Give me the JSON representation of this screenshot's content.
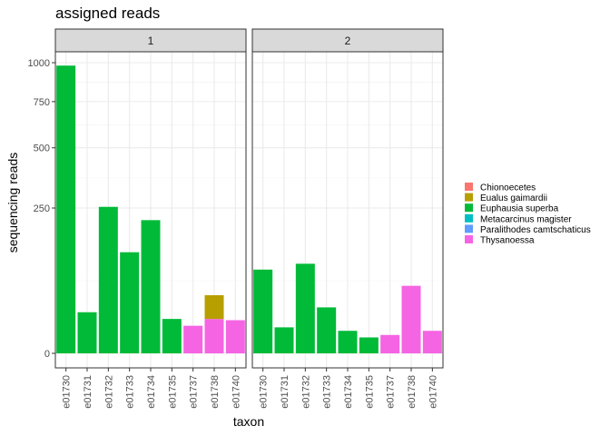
{
  "chart_data": {
    "type": "bar",
    "stacked": true,
    "title": "assigned reads",
    "xlabel": "taxon",
    "ylabel": "sequencing reads",
    "y_scale": "sqrt",
    "ylim": [
      0,
      1100
    ],
    "yticks": [
      0,
      250,
      500,
      750,
      1000
    ],
    "categories": [
      "e01730",
      "e01731",
      "e01732",
      "e01733",
      "e01734",
      "e01735",
      "e01737",
      "e01738",
      "e01740"
    ],
    "legend_position": "right",
    "legend": [
      {
        "name": "Chionoecetes",
        "color": "#F8766D"
      },
      {
        "name": "Eualus gaimardii",
        "color": "#B79F00"
      },
      {
        "name": "Euphausia superba",
        "color": "#00BA38"
      },
      {
        "name": "Metacarcinus magister",
        "color": "#00BFC4"
      },
      {
        "name": "Paralithodes camtschaticus",
        "color": "#619CFF"
      },
      {
        "name": "Thysanoessa",
        "color": "#F564E3"
      }
    ],
    "panels": [
      {
        "label": "1",
        "bars": [
          {
            "category": "e01730",
            "segments": [
              {
                "taxon": "Euphausia superba",
                "value": 980
              }
            ]
          },
          {
            "category": "e01731",
            "segments": [
              {
                "taxon": "Euphausia superba",
                "value": 20
              }
            ]
          },
          {
            "category": "e01732",
            "segments": [
              {
                "taxon": "Euphausia superba",
                "value": 254
              }
            ]
          },
          {
            "category": "e01733",
            "segments": [
              {
                "taxon": "Euphausia superba",
                "value": 121
              }
            ]
          },
          {
            "category": "e01734",
            "segments": [
              {
                "taxon": "Euphausia superba",
                "value": 210
              }
            ]
          },
          {
            "category": "e01735",
            "segments": [
              {
                "taxon": "Euphausia superba",
                "value": 14
              }
            ]
          },
          {
            "category": "e01737",
            "segments": [
              {
                "taxon": "Thysanoessa",
                "value": 9
              }
            ]
          },
          {
            "category": "e01738",
            "segments": [
              {
                "taxon": "Thysanoessa",
                "value": 14
              },
              {
                "taxon": "Eualus gaimardii",
                "value": 26
              }
            ]
          },
          {
            "category": "e01740",
            "segments": [
              {
                "taxon": "Thysanoessa",
                "value": 13
              }
            ]
          }
        ]
      },
      {
        "label": "2",
        "bars": [
          {
            "category": "e01730",
            "segments": [
              {
                "taxon": "Euphausia superba",
                "value": 83
              }
            ]
          },
          {
            "category": "e01731",
            "segments": [
              {
                "taxon": "Euphausia superba",
                "value": 8
              }
            ]
          },
          {
            "category": "e01732",
            "segments": [
              {
                "taxon": "Euphausia superba",
                "value": 95
              }
            ]
          },
          {
            "category": "e01733",
            "segments": [
              {
                "taxon": "Euphausia superba",
                "value": 25
              }
            ]
          },
          {
            "category": "e01734",
            "segments": [
              {
                "taxon": "Euphausia superba",
                "value": 6
              }
            ]
          },
          {
            "category": "e01735",
            "segments": [
              {
                "taxon": "Euphausia superba",
                "value": 3
              }
            ]
          },
          {
            "category": "e01737",
            "segments": [
              {
                "taxon": "Thysanoessa",
                "value": 4
              }
            ]
          },
          {
            "category": "e01738",
            "segments": [
              {
                "taxon": "Thysanoessa",
                "value": 54
              }
            ]
          },
          {
            "category": "e01740",
            "segments": [
              {
                "taxon": "Thysanoessa",
                "value": 6
              }
            ]
          }
        ]
      }
    ]
  }
}
